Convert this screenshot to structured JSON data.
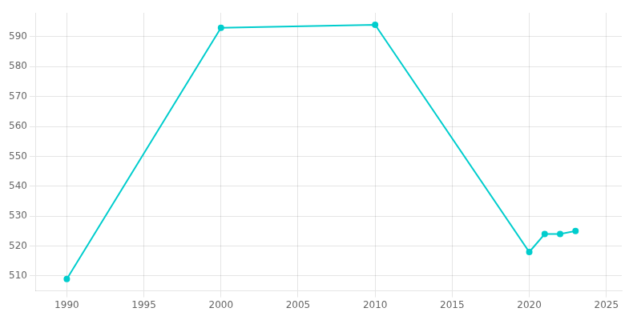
{
  "chart_data": {
    "type": "line",
    "x": [
      1990,
      2000,
      2010,
      2020,
      2021,
      2022,
      2023
    ],
    "values": [
      509,
      593,
      594,
      518,
      524,
      524,
      525
    ],
    "color": "#00CDCD",
    "marker": "circle",
    "xlim": [
      1988,
      2026
    ],
    "ylim": [
      505,
      598
    ],
    "xticks": [
      1990,
      1995,
      2000,
      2005,
      2010,
      2015,
      2020,
      2025
    ],
    "yticks": [
      510,
      520,
      530,
      540,
      550,
      560,
      570,
      580,
      590
    ],
    "grid": true
  }
}
